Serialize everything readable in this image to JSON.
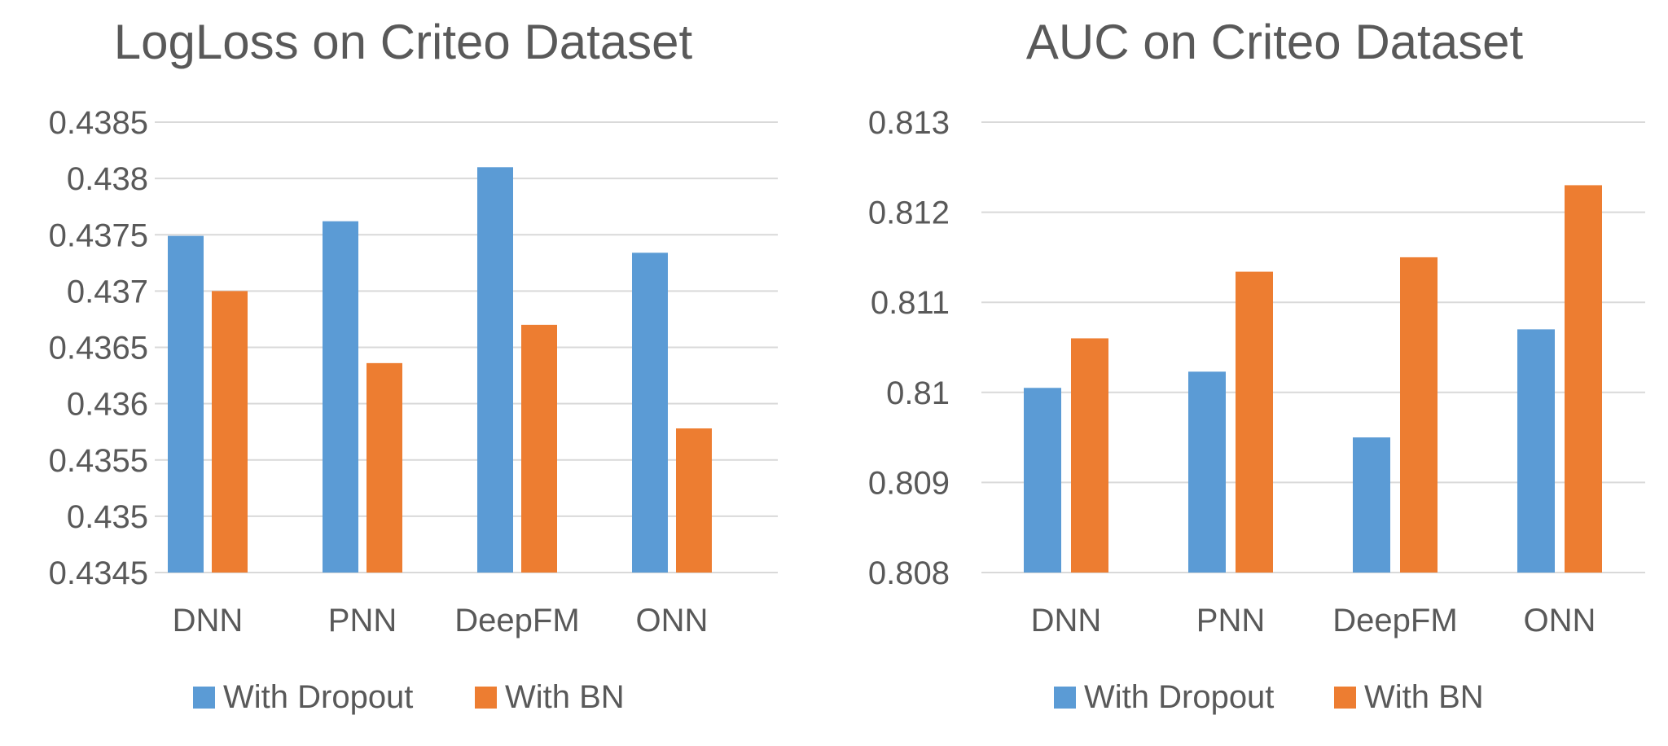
{
  "colors": {
    "dropout": "#5B9BD5",
    "bn": "#ED7D31"
  },
  "chart_data": [
    {
      "type": "bar",
      "title": "LogLoss on Criteo Dataset",
      "categories": [
        "DNN",
        "PNN",
        "DeepFM",
        "ONN"
      ],
      "series": [
        {
          "name": "With Dropout",
          "values": [
            0.43749,
            0.43762,
            0.4381,
            0.43734
          ]
        },
        {
          "name": "With BN",
          "values": [
            0.437,
            0.43636,
            0.4367,
            0.43578
          ]
        }
      ],
      "ylim": [
        0.4345,
        0.4385
      ],
      "yticks": [
        "0.4345",
        "0.435",
        "0.4355",
        "0.436",
        "0.4365",
        "0.437",
        "0.4375",
        "0.438",
        "0.4385"
      ],
      "legend": "bottom",
      "grid": true
    },
    {
      "type": "bar",
      "title": "AUC on Criteo Dataset",
      "categories": [
        "DNN",
        "PNN",
        "DeepFM",
        "ONN"
      ],
      "series": [
        {
          "name": "With Dropout",
          "values": [
            0.81005,
            0.81023,
            0.8095,
            0.8107
          ]
        },
        {
          "name": "With BN",
          "values": [
            0.8106,
            0.81134,
            0.8115,
            0.8123
          ]
        }
      ],
      "ylim": [
        0.808,
        0.813
      ],
      "yticks": [
        "0.808",
        "0.809",
        "0.81",
        "0.811",
        "0.812",
        "0.813"
      ],
      "legend": "bottom",
      "grid": true
    }
  ]
}
